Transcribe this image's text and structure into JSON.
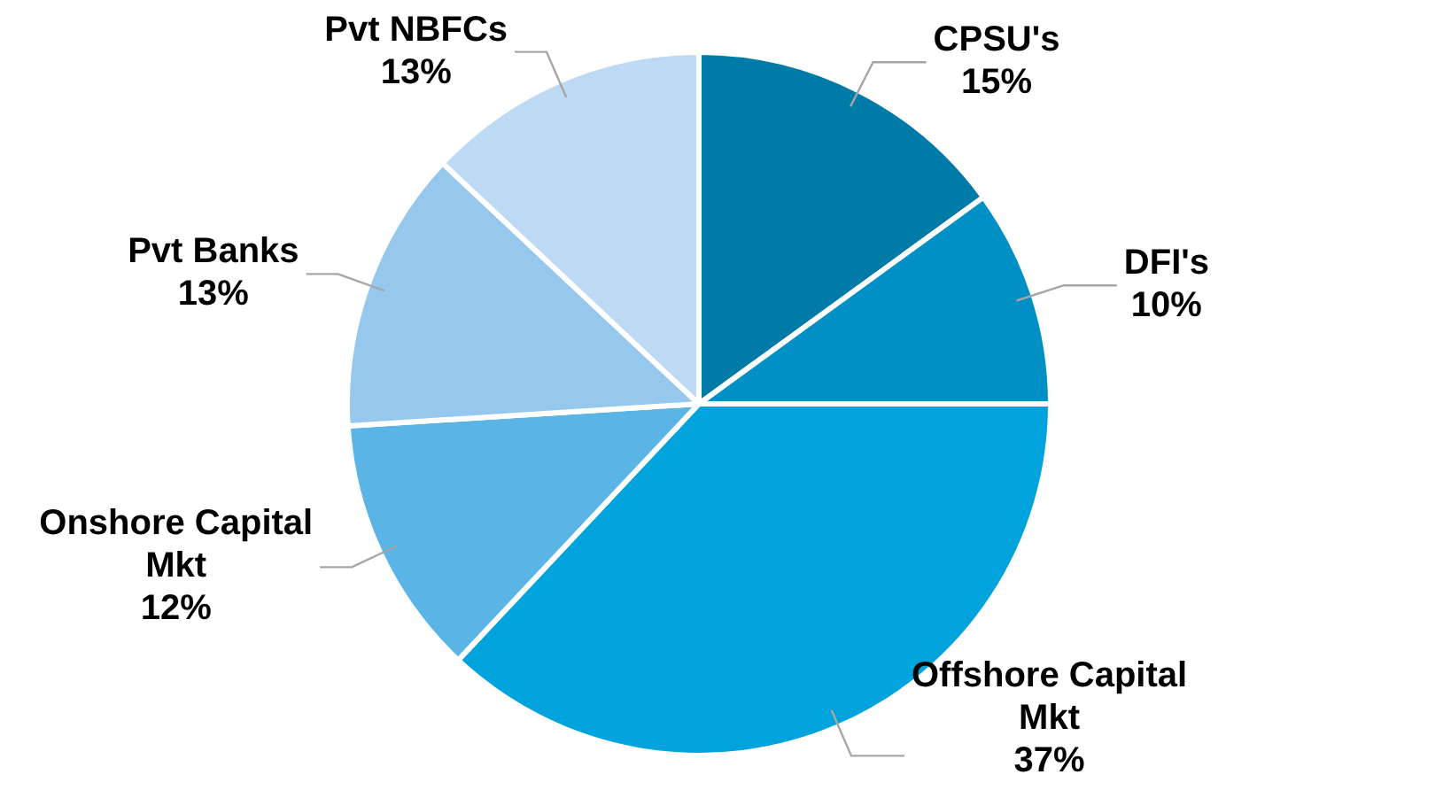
{
  "chart_data": {
    "type": "pie",
    "categories": [
      "CPSU's",
      "DFI's",
      "Offshore Capital Mkt",
      "Onshore Capital Mkt",
      "Pvt Banks",
      "Pvt NBFCs"
    ],
    "values": [
      15,
      10,
      37,
      12,
      13,
      13
    ],
    "colors": [
      "#007ba7",
      "#0090c5",
      "#00a3dc",
      "#5ab4e5",
      "#95c8ec",
      "#bdd9f3"
    ],
    "value_labels": [
      "15%",
      "10%",
      "37%",
      "12%",
      "13%",
      "13%"
    ],
    "legend": false
  }
}
